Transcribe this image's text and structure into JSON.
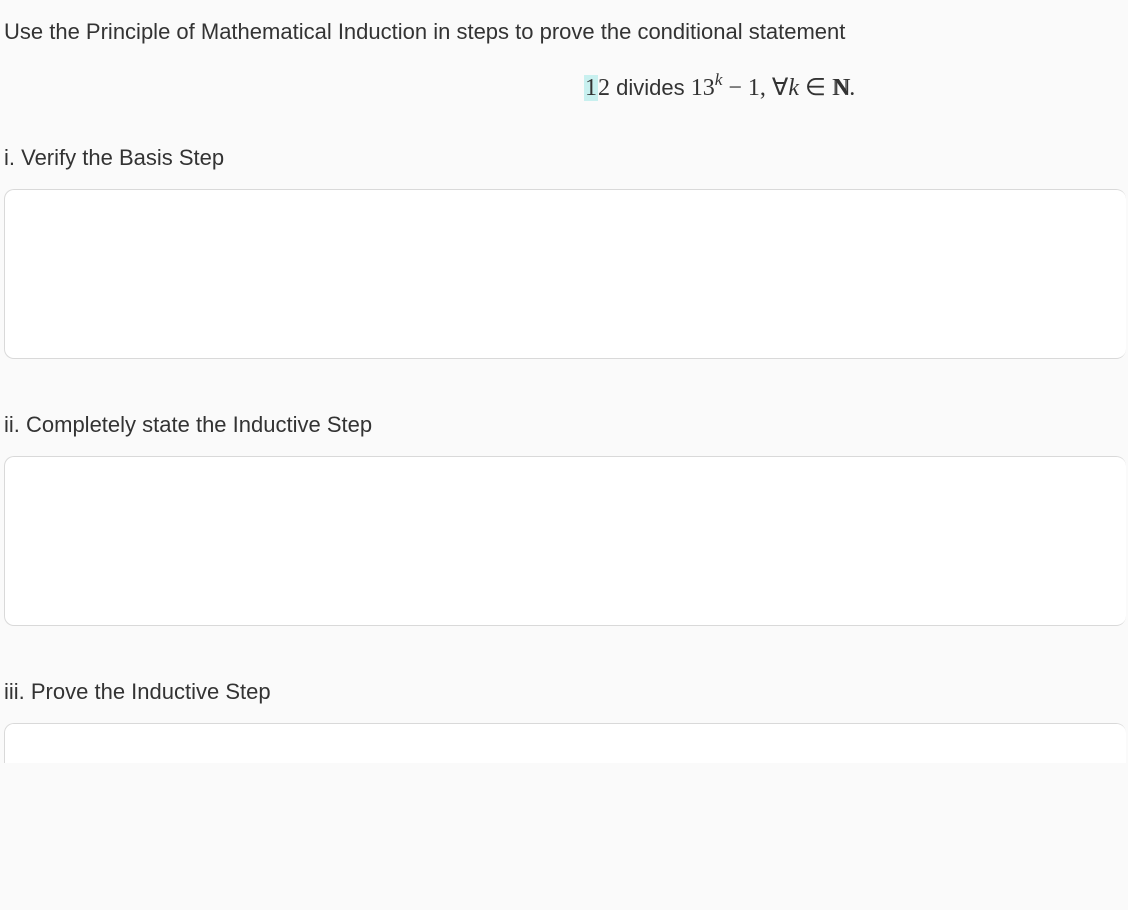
{
  "intro": "Use the Principle of Mathematical Induction in steps to prove the conditional statement",
  "statement": {
    "pre_highlight": "",
    "highlight": "1",
    "after_highlight": "2",
    "word_divides": " divides ",
    "base": "13",
    "exponent": "k",
    "mid": " − 1, ∀",
    "var": "k",
    "in": " ∈ ",
    "set_letter": "N",
    "tail": "."
  },
  "sections": {
    "i": {
      "title": "i. Verify the Basis Step"
    },
    "ii": {
      "title": "ii. Completely state the Inductive Step"
    },
    "iii": {
      "title": "iii. Prove the Inductive Step"
    }
  },
  "colors": {
    "page_bg": "#fafafa",
    "box_bg": "#ffffff",
    "box_border": "#d9d9d9",
    "text": "#333333",
    "highlight_bg": "#c8f0ef"
  }
}
